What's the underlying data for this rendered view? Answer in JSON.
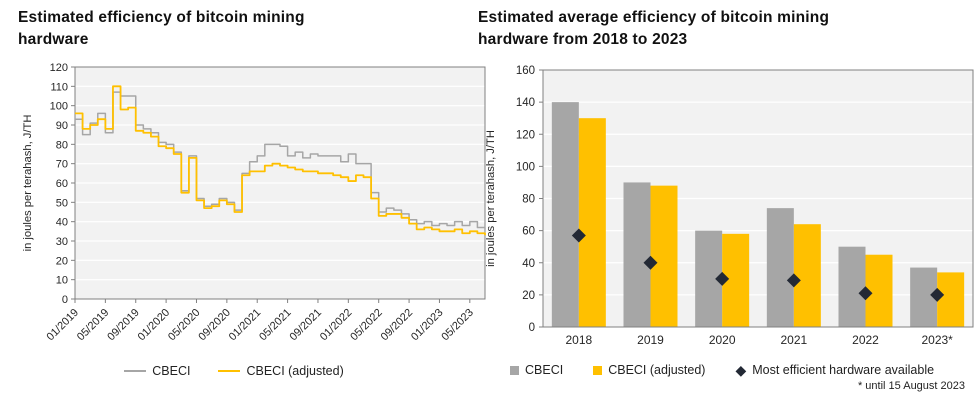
{
  "colors": {
    "cbeci": "#a6a6a6",
    "cbeci_adjusted": "#ffc000",
    "most_efficient": "#232935",
    "plot_bg": "#f2f2f2",
    "grid": "#ffffff",
    "axis": "#808080",
    "tick_text": "#262626"
  },
  "chart_data": [
    {
      "type": "line",
      "title": "Estimated efficiency of bitcoin mining hardware",
      "ylabel": "in joules per terahash, J/TH",
      "ylim": [
        0,
        120
      ],
      "yticks": [
        0,
        10,
        20,
        30,
        40,
        50,
        60,
        70,
        80,
        90,
        100,
        110,
        120
      ],
      "grid": true,
      "legend_position": "bottom",
      "x_unit": "month",
      "x_range": [
        "2019-01",
        "2023-07"
      ],
      "x_tick_labels": [
        "01/2019",
        "05/2019",
        "09/2019",
        "01/2020",
        "05/2020",
        "09/2020",
        "01/2021",
        "05/2021",
        "09/2021",
        "01/2022",
        "05/2022",
        "09/2022",
        "01/2023",
        "05/2023"
      ],
      "x_tick_interval_months": 4,
      "series": [
        {
          "name": "CBECI",
          "color_key": "cbeci",
          "values": [
            93,
            85,
            91,
            96,
            86,
            107,
            105,
            105,
            90,
            88,
            86,
            81,
            80,
            76,
            56,
            74,
            52,
            48,
            49,
            52,
            50,
            46,
            65,
            71,
            74,
            80,
            80,
            79,
            74,
            76,
            73,
            75,
            74,
            74,
            74,
            71,
            75,
            70,
            70,
            55,
            45,
            47,
            46,
            44,
            41,
            39,
            40,
            38,
            39,
            38,
            40,
            38,
            40,
            37,
            36
          ]
        },
        {
          "name": "CBECI (adjusted)",
          "color_key": "cbeci_adjusted",
          "values": [
            96,
            88,
            90,
            93,
            88,
            110,
            98,
            99,
            87,
            86,
            84,
            79,
            78,
            75,
            55,
            73,
            51,
            47,
            48,
            51,
            49,
            45,
            64,
            66,
            66,
            69,
            70,
            69,
            68,
            67,
            66,
            66,
            65,
            65,
            64,
            63,
            61,
            64,
            63,
            52,
            43,
            44,
            44,
            42,
            39,
            36,
            37,
            36,
            35,
            35,
            36,
            34,
            35,
            34,
            33
          ]
        }
      ]
    },
    {
      "type": "bar",
      "title": "Estimated average efficiency of bitcoin mining hardware from 2018 to 2023",
      "ylabel": "in joules per terahash, J/TH",
      "ylim": [
        0,
        160
      ],
      "yticks": [
        0,
        20,
        40,
        60,
        80,
        100,
        120,
        140,
        160
      ],
      "grid": true,
      "legend_position": "bottom",
      "categories": [
        "2018",
        "2019",
        "2020",
        "2021",
        "2022",
        "2023*"
      ],
      "series": [
        {
          "name": "CBECI",
          "type": "bar",
          "color_key": "cbeci",
          "values": [
            140,
            90,
            60,
            74,
            50,
            37
          ]
        },
        {
          "name": "CBECI (adjusted)",
          "type": "bar",
          "color_key": "cbeci_adjusted",
          "values": [
            130,
            88,
            58,
            64,
            45,
            34
          ]
        },
        {
          "name": "Most efficient hardware available",
          "type": "scatter-diamond",
          "color_key": "most_efficient",
          "values": [
            57,
            40,
            30,
            29,
            21,
            20
          ]
        }
      ],
      "footnote": "* until 15 August 2023"
    }
  ]
}
